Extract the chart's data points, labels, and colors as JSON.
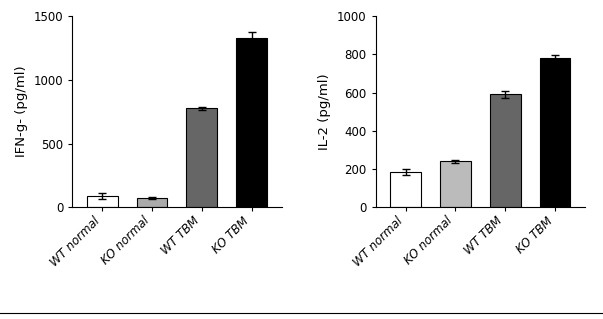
{
  "chart1": {
    "ylabel": "IFN-g- (pg/ml)",
    "categories": [
      "WT normal",
      "KO normal",
      "WT TBM",
      "KO TBM"
    ],
    "values": [
      90,
      72,
      775,
      1325
    ],
    "errors": [
      22,
      10,
      15,
      52
    ],
    "colors": [
      "#ffffff",
      "#aaaaaa",
      "#666666",
      "#000000"
    ],
    "ylim": [
      0,
      1500
    ],
    "yticks": [
      0,
      500,
      1000,
      1500
    ],
    "bar_edge_color": "#000000"
  },
  "chart2": {
    "ylabel": "IL-2 (pg/ml)",
    "categories": [
      "WT normal",
      "KO normal",
      "WT TBM",
      "KO TBM"
    ],
    "values": [
      185,
      240,
      590,
      780
    ],
    "errors": [
      14,
      10,
      18,
      18
    ],
    "colors": [
      "#ffffff",
      "#bbbbbb",
      "#666666",
      "#000000"
    ],
    "ylim": [
      0,
      1000
    ],
    "yticks": [
      0,
      200,
      400,
      600,
      800,
      1000
    ],
    "bar_edge_color": "#000000"
  },
  "background_color": "#ffffff",
  "tick_fontsize": 8.5,
  "label_fontsize": 9.5,
  "bar_width": 0.62,
  "capsize": 3,
  "figsize": [
    6.03,
    3.19
  ],
  "dpi": 100
}
